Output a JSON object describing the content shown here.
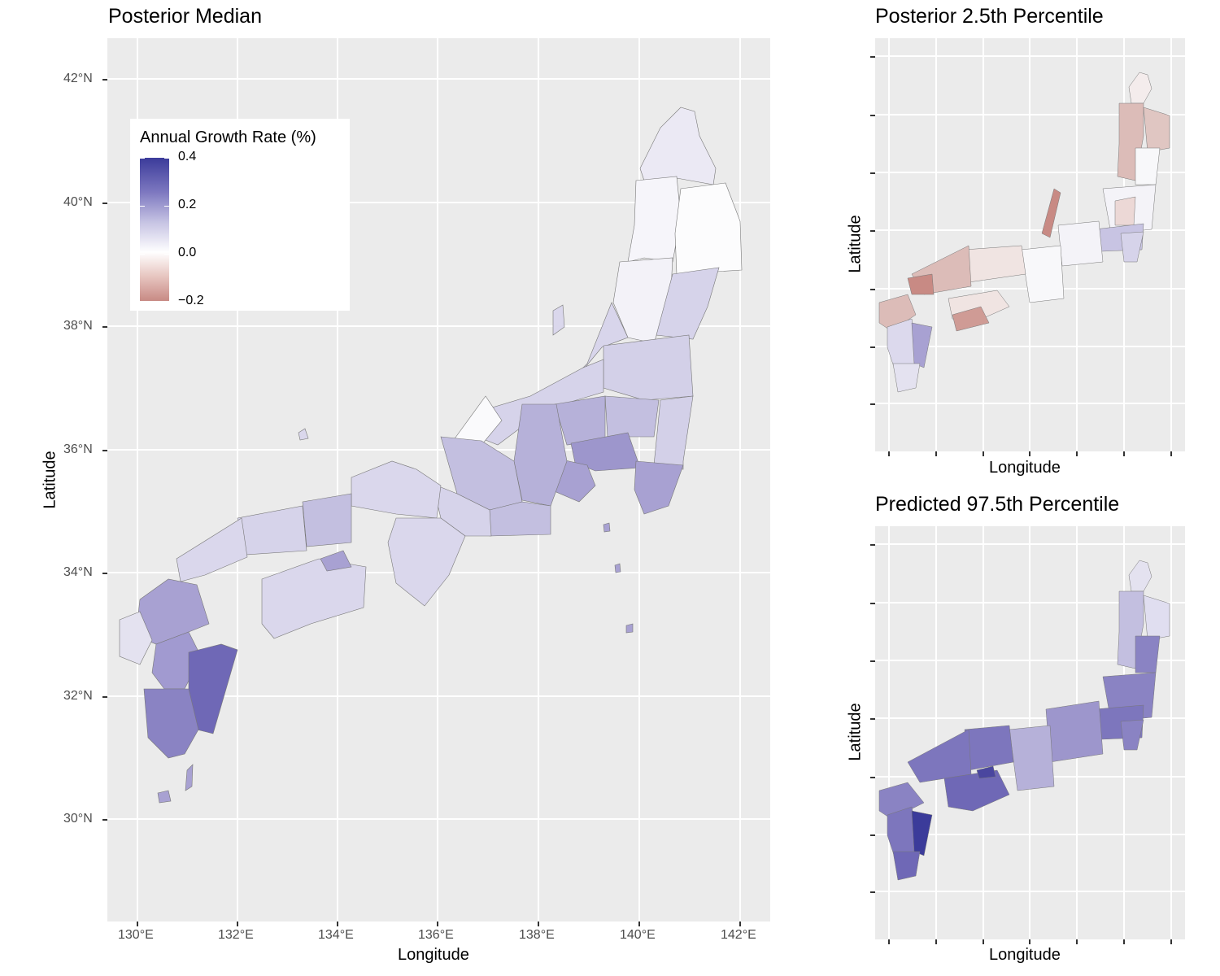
{
  "panels": {
    "main": {
      "title": "Posterior Median"
    },
    "top_right": {
      "title": "Posterior 2.5th Percentile"
    },
    "bottom_right": {
      "title": "Predicted 97.5th Percentile"
    }
  },
  "axes": {
    "xlabel": "Longitude",
    "ylabel": "Latitude",
    "x_ticks": [
      "130°E",
      "132°E",
      "134°E",
      "136°E",
      "138°E",
      "140°E",
      "142°E"
    ],
    "y_ticks": [
      "30°N",
      "32°N",
      "34°N",
      "36°N",
      "38°N",
      "40°N",
      "42°N"
    ]
  },
  "legend": {
    "title": "Annual Growth Rate (%)",
    "labels": [
      "0.4",
      "0.2",
      "0.0",
      "−0.2"
    ],
    "colors": {
      "high": "#3b3b9a",
      "mid": "#ffffff",
      "low": "#c88a84"
    }
  },
  "colors": {
    "panel_background": "#ebebeb",
    "gridline": "#ffffff",
    "region_border": "#777777"
  }
}
